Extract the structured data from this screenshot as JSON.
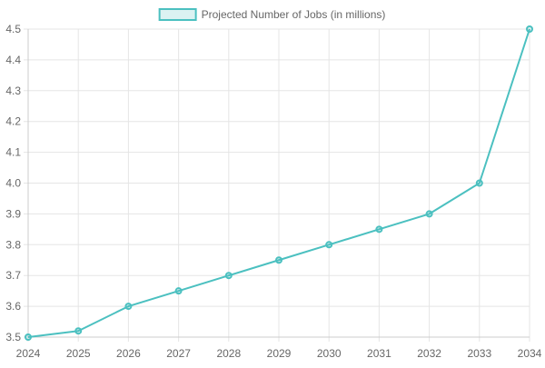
{
  "chart_data": {
    "type": "line",
    "title": "",
    "xlabel": "",
    "ylabel": "",
    "x": [
      "2024",
      "2025",
      "2026",
      "2027",
      "2028",
      "2029",
      "2030",
      "2031",
      "2032",
      "2033",
      "2034"
    ],
    "series": [
      {
        "name": "Projected Number of Jobs (in millions)",
        "values": [
          3.5,
          3.52,
          3.6,
          3.65,
          3.7,
          3.75,
          3.8,
          3.85,
          3.9,
          4.0,
          4.5
        ]
      }
    ],
    "ylim": [
      3.5,
      4.5
    ],
    "yticks": [
      "3.5",
      "3.6",
      "3.7",
      "3.8",
      "3.9",
      "4.0",
      "4.1",
      "4.2",
      "4.3",
      "4.4",
      "4.5"
    ],
    "grid": true,
    "legend": "top-center",
    "colors": {
      "line": "#4bc0c0",
      "fill": "rgba(75, 192, 192, 0.2)",
      "grid": "#e5e5e5",
      "text": "#666666"
    }
  }
}
